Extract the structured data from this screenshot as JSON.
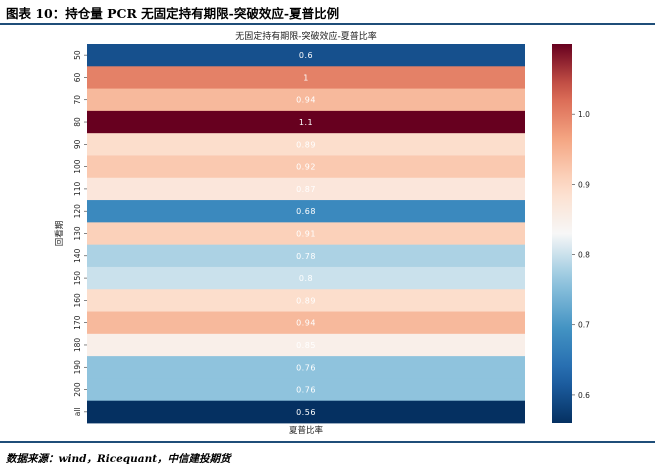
{
  "header": {
    "title": "图表 10：持仓量 PCR 无固定持有期限-突破效应-夏普比例"
  },
  "footer": {
    "source": "数据来源：wind，Ricequant，中信建投期货"
  },
  "colors": {
    "rule": "#1f4e79",
    "colormap": "RdBu_r"
  },
  "chart_data": {
    "type": "heatmap",
    "title": "无固定持有期限-突破效应-夏普比率",
    "xlabel": "夏普比率",
    "ylabel": "回看期",
    "categories": [
      "50",
      "60",
      "70",
      "80",
      "90",
      "100",
      "110",
      "120",
      "130",
      "140",
      "150",
      "160",
      "170",
      "180",
      "190",
      "200",
      "all"
    ],
    "values": [
      0.6,
      1.0,
      0.94,
      1.1,
      0.89,
      0.92,
      0.87,
      0.68,
      0.91,
      0.78,
      0.8,
      0.89,
      0.94,
      0.85,
      0.76,
      0.76,
      0.56
    ],
    "labels": [
      "0.6",
      "1",
      "0.94",
      "1.1",
      "0.89",
      "0.92",
      "0.87",
      "0.68",
      "0.91",
      "0.78",
      "0.8",
      "0.89",
      "0.94",
      "0.85",
      "0.76",
      "0.76",
      "0.56"
    ],
    "colorbar": {
      "range": [
        0.56,
        1.1
      ],
      "ticks": [
        0.6,
        0.7,
        0.8,
        0.9,
        1.0
      ],
      "tick_labels": [
        "0.6",
        "0.7",
        "0.8",
        "0.9",
        "1.0"
      ]
    }
  }
}
